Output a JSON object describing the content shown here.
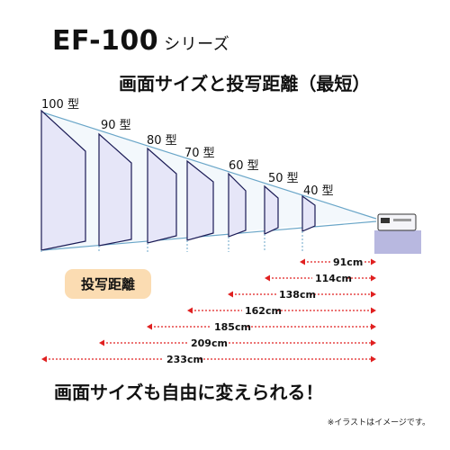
{
  "header": {
    "model": "EF-100",
    "series_suffix": "シリーズ",
    "subtitle": "画面サイズと投写距離（最短）"
  },
  "screen_sizes": [
    "100 型",
    "90 型",
    "80 型",
    "70 型",
    "60 型",
    "50 型",
    "40 型"
  ],
  "distance_badge": "投写距離",
  "distances": [
    "91cm",
    "114cm",
    "138cm",
    "162cm",
    "185cm",
    "209cm",
    "233cm"
  ],
  "tagline": "画面サイズも自由に変えられる！",
  "note": "※イラストはイメージです。",
  "colors": {
    "screen_fill": "#e6e6f8",
    "screen_border": "#1a1a55",
    "beam": "#6aa6c8",
    "arrow": "#e02020",
    "badge": "#fbdcb2",
    "platform": "#b8b8e0"
  }
}
